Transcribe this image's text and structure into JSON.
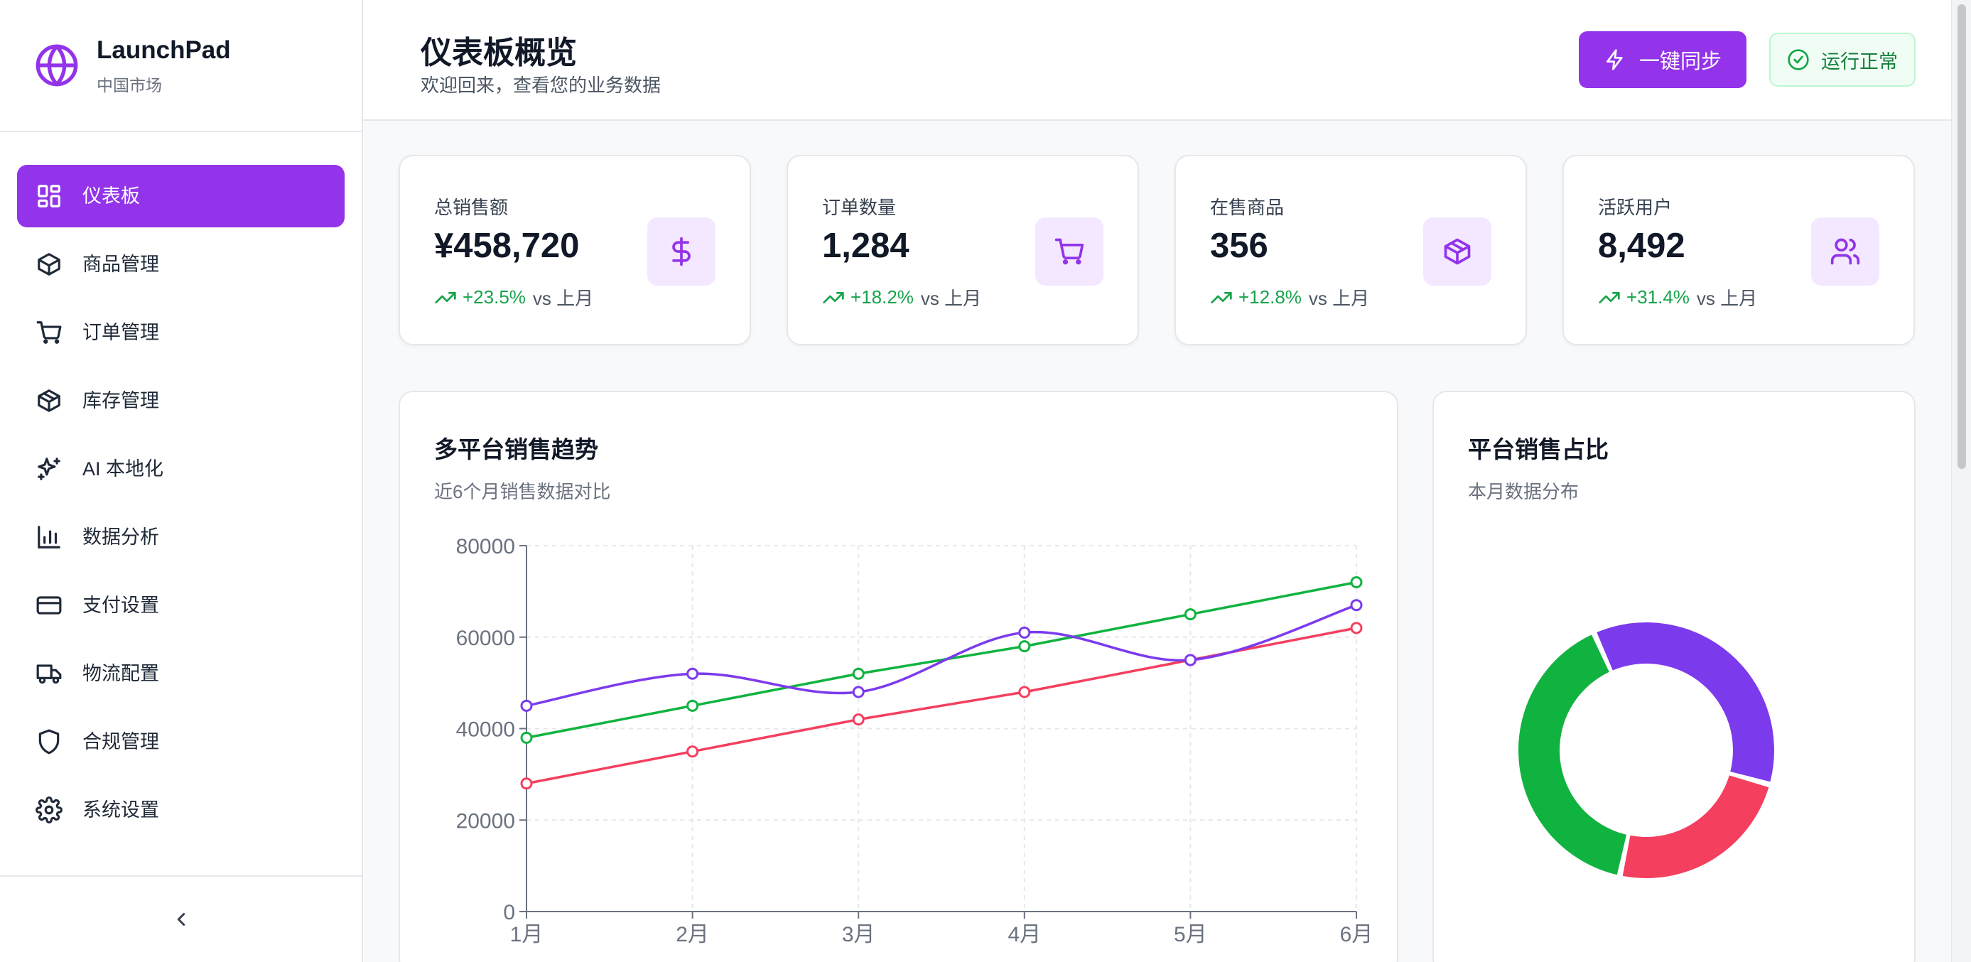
{
  "brand": {
    "name": "LaunchPad",
    "subtitle": "中国市场",
    "icon": "globe-icon"
  },
  "sidebar": {
    "items": [
      {
        "label": "仪表板",
        "icon": "dashboard-icon",
        "active": true
      },
      {
        "label": "商品管理",
        "icon": "package-icon",
        "active": false
      },
      {
        "label": "订单管理",
        "icon": "cart-icon",
        "active": false
      },
      {
        "label": "库存管理",
        "icon": "box-icon",
        "active": false
      },
      {
        "label": "AI 本地化",
        "icon": "sparkles-icon",
        "active": false
      },
      {
        "label": "数据分析",
        "icon": "bar-chart-icon",
        "active": false
      },
      {
        "label": "支付设置",
        "icon": "credit-card-icon",
        "active": false
      },
      {
        "label": "物流配置",
        "icon": "truck-icon",
        "active": false
      },
      {
        "label": "合规管理",
        "icon": "shield-icon",
        "active": false
      },
      {
        "label": "系统设置",
        "icon": "gear-icon",
        "active": false
      }
    ],
    "collapse_icon": "chevron-left-icon"
  },
  "header": {
    "title": "仪表板概览",
    "subtitle": "欢迎回来，查看您的业务数据",
    "sync_label": "一键同步",
    "status_label": "运行正常"
  },
  "stats": [
    {
      "label": "总销售额",
      "value": "¥458,720",
      "trend": "+23.5%",
      "ref": "vs 上月",
      "icon": "dollar-icon"
    },
    {
      "label": "订单数量",
      "value": "1,284",
      "trend": "+18.2%",
      "ref": "vs 上月",
      "icon": "cart-icon"
    },
    {
      "label": "在售商品",
      "value": "356",
      "trend": "+12.8%",
      "ref": "vs 上月",
      "icon": "package-icon"
    },
    {
      "label": "活跃用户",
      "value": "8,492",
      "trend": "+31.4%",
      "ref": "vs 上月",
      "icon": "users-icon"
    }
  ],
  "colors": {
    "accent": "#9333ea",
    "purple": "#7c3aed",
    "green": "#10b33f",
    "red": "#f43f5e",
    "up": "#16a34a"
  },
  "trend_card": {
    "title": "多平台销售趋势",
    "subtitle": "近6个月销售数据对比"
  },
  "share_card": {
    "title": "平台销售占比",
    "subtitle": "本月数据分布"
  },
  "chart_data": [
    {
      "type": "line",
      "categories": [
        "1月",
        "2月",
        "3月",
        "4月",
        "5月",
        "6月"
      ],
      "ylim": [
        0,
        80000
      ],
      "yticks": [
        0,
        20000,
        40000,
        60000,
        80000
      ],
      "grid": true,
      "series": [
        {
          "color": "#7c3aed",
          "smooth": true,
          "values": [
            45000,
            52000,
            48000,
            61000,
            55000,
            67000
          ]
        },
        {
          "color": "#10b33f",
          "smooth": false,
          "values": [
            38000,
            45000,
            52000,
            58000,
            65000,
            72000
          ]
        },
        {
          "color": "#f43f5e",
          "smooth": false,
          "values": [
            28000,
            35000,
            42000,
            48000,
            55000,
            62000
          ]
        }
      ]
    },
    {
      "type": "pie",
      "donut": true,
      "slices": [
        {
          "value": 36,
          "color": "#7c3aed"
        },
        {
          "value": 24,
          "color": "#f43f5e"
        },
        {
          "value": 40,
          "color": "#10b33f"
        }
      ]
    }
  ]
}
